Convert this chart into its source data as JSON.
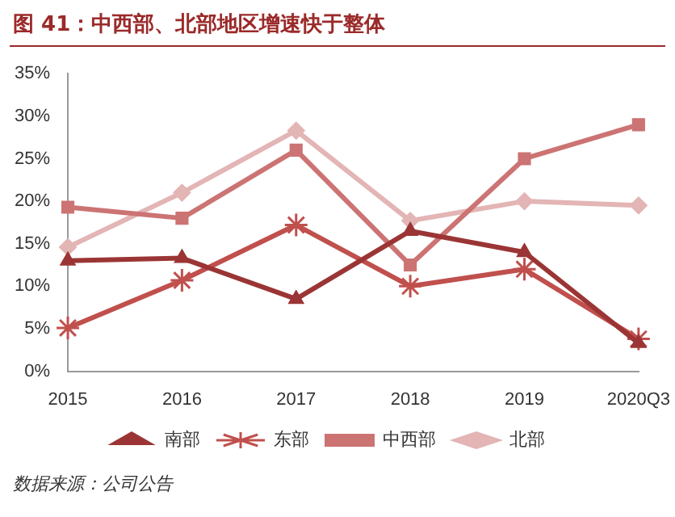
{
  "chart_data": {
    "type": "line",
    "title": "图 41：中西部、北部地区增速快于整体",
    "annotations": [
      "数据来源：公司公告"
    ],
    "categories": [
      "2015",
      "2016",
      "2017",
      "2018",
      "2019",
      "2020Q3"
    ],
    "ylim": [
      0,
      35
    ],
    "yticks": [
      {
        "value": 0,
        "label": "0%"
      },
      {
        "value": 5,
        "label": "5%"
      },
      {
        "value": 10,
        "label": "10%"
      },
      {
        "value": 15,
        "label": "15%"
      },
      {
        "value": 20,
        "label": "20%"
      },
      {
        "value": 25,
        "label": "25%"
      },
      {
        "value": 30,
        "label": "30%"
      },
      {
        "value": 35,
        "label": "35%"
      }
    ],
    "grid": false,
    "legend": "bottom",
    "line_style": "solid",
    "series": [
      {
        "name": "南部",
        "color": "#9b3535",
        "marker": "triangle",
        "values": [
          13,
          13.3,
          8.5,
          16.5,
          14,
          3.3
        ]
      },
      {
        "name": "东部",
        "color": "#c0504d",
        "marker": "cross",
        "values": [
          5.1,
          10.7,
          17.2,
          10,
          12,
          3.8
        ]
      },
      {
        "name": "中西部",
        "color": "#cc7373",
        "marker": "square",
        "values": [
          19.3,
          18,
          26,
          12.5,
          25,
          29
        ]
      },
      {
        "name": "北部",
        "color": "#e3b5b5",
        "marker": "diamond",
        "values": [
          14.6,
          21,
          28.3,
          17.7,
          20,
          19.5
        ]
      }
    ]
  }
}
